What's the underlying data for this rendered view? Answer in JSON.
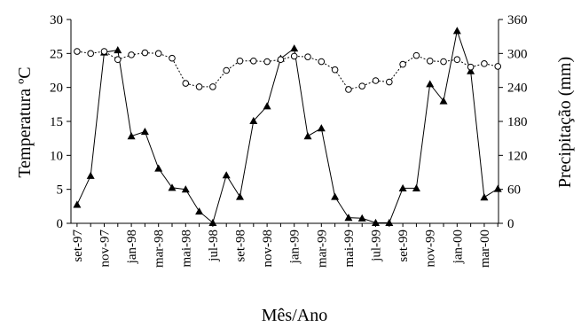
{
  "chart_data": {
    "type": "line",
    "xlabel": "Mês/Ano",
    "ylabel_left": "Temperatura ºC",
    "ylabel_right": "Precipitação (mm)",
    "ylim_left": [
      0,
      30
    ],
    "ylim_right": [
      0,
      360
    ],
    "yticks_left": [
      "0",
      "5",
      "10",
      "15",
      "20",
      "25",
      "30"
    ],
    "yticks_right": [
      "0",
      "60",
      "120",
      "180",
      "240",
      "300",
      "360"
    ],
    "categories": [
      "set-97",
      "out-97",
      "nov-97",
      "dez-97",
      "jan-98",
      "fev-98",
      "mar-98",
      "abr-98",
      "mai-98",
      "jun-98",
      "jul-98",
      "ago-98",
      "set-98",
      "out-98",
      "nov-98",
      "dez-98",
      "jan-99",
      "fev-99",
      "mar-99",
      "abr-99",
      "mai-99",
      "jun-99",
      "jul-99",
      "ago-99",
      "set-99",
      "out-99",
      "nov-99",
      "dez-99",
      "jan-00",
      "fev-00",
      "mar-00",
      "abr-00"
    ],
    "x_tick_labels": [
      "set-97",
      "nov-97",
      "jan-98",
      "mar-98",
      "mai-98",
      "jul-98",
      "set-98",
      "nov-98",
      "jan-99",
      "mar-99",
      "mai-99",
      "jul-99",
      "set-99",
      "nov-99",
      "jan-00",
      "mar-00"
    ],
    "x_tick_every": 2,
    "series": [
      {
        "axis": "right",
        "marker": "triangle",
        "line": "solid",
        "values": [
          33,
          84,
          302,
          306,
          154,
          162,
          97,
          63,
          60,
          21,
          1,
          85,
          47,
          181,
          207,
          291,
          309,
          154,
          168,
          47,
          10,
          9,
          1,
          1,
          62,
          62,
          246,
          216,
          340,
          269,
          46,
          61
        ]
      },
      {
        "axis": "left",
        "marker": "circle",
        "line": "dotted",
        "values": [
          25.3,
          25.0,
          25.3,
          24.1,
          24.8,
          25.1,
          25.0,
          24.3,
          20.6,
          20.1,
          20.1,
          22.5,
          23.9,
          23.9,
          23.8,
          24.1,
          24.6,
          24.5,
          23.8,
          22.6,
          19.7,
          20.2,
          21.0,
          20.8,
          23.4,
          24.7,
          23.9,
          23.8,
          24.1,
          23.0,
          23.5,
          23.1
        ]
      }
    ]
  }
}
